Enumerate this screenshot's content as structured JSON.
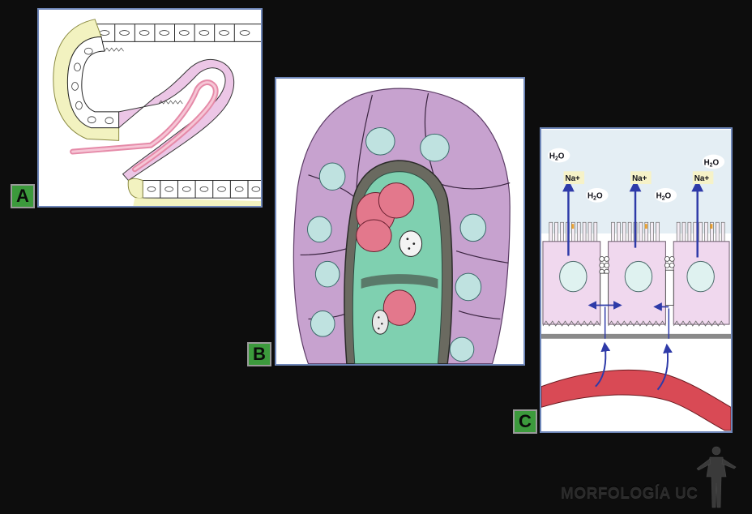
{
  "panels": {
    "a": {
      "tag": "A"
    },
    "b": {
      "tag": "B"
    },
    "c": {
      "tag": "C",
      "labels": {
        "na": "Na+",
        "h2o_main": "H",
        "h2o_sub": "2",
        "h2o_end": "O"
      }
    }
  },
  "watermark": "MORFOLOGÍA UC",
  "colors": {
    "background": "#0d0d0d",
    "tag_green": "#3c9a3c",
    "panel_border": "#6e86b8",
    "cytoplasm_pink": "#e8c8e8",
    "vessel_red": "#d94a55",
    "arrow_blue": "#2e3aa8",
    "nucleus_teal": "#bfe2e0",
    "cell_violet": "#c7a2cf",
    "endothelium_green": "#7fd0b0"
  }
}
